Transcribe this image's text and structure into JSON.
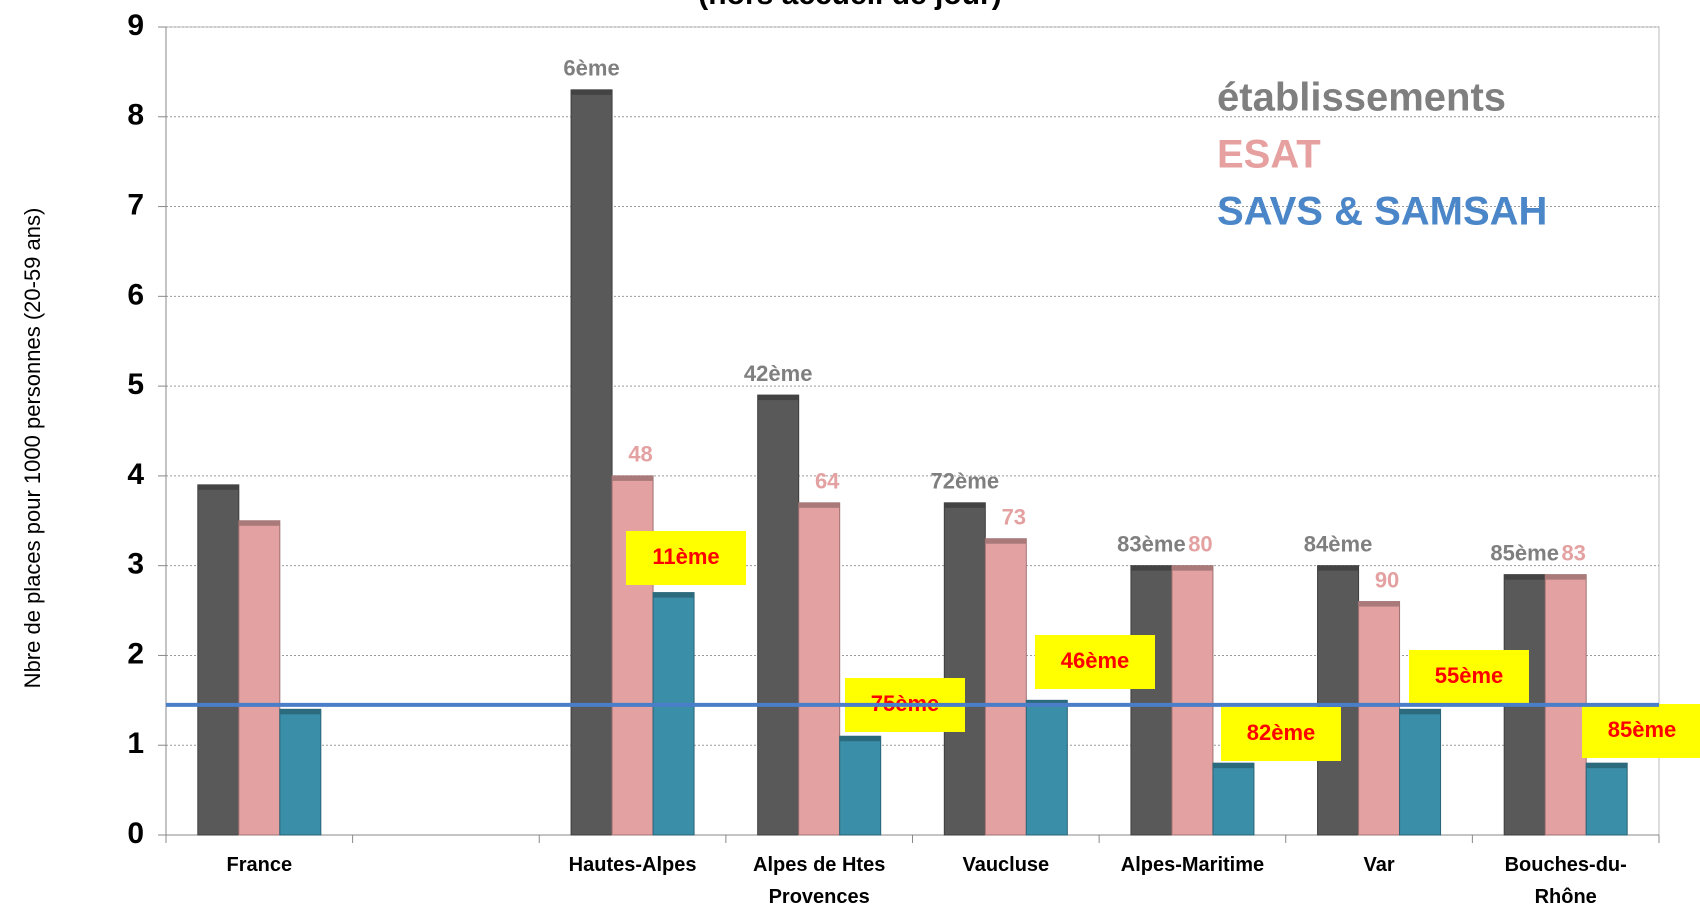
{
  "chart_data": {
    "type": "bar",
    "title": "(hors accueil de jour)",
    "y_label": "Nbre de places pour 1000 personnes (20-59 ans)",
    "categories": [
      "France",
      null,
      "Hautes-Alpes",
      "Alpes de Htes Provences",
      "Vaucluse",
      "Alpes-Maritime",
      "Var",
      "Bouches-du-Rhône"
    ],
    "series": [
      {
        "name": "établissements",
        "color": "#595959",
        "legend_color": "#7f7f7f",
        "values": [
          3.9,
          null,
          8.3,
          4.9,
          3.7,
          3.0,
          3.0,
          2.9
        ],
        "rank_labels": [
          null,
          null,
          "6ème",
          "42ème",
          "72ème",
          "83ème",
          "84ème",
          "85ème"
        ]
      },
      {
        "name": "ESAT",
        "color": "#e3a1a1",
        "legend_color": "#e6a0a0",
        "values": [
          3.5,
          null,
          4.0,
          3.7,
          3.3,
          3.0,
          2.6,
          2.9
        ],
        "rank_labels": [
          null,
          null,
          "48",
          "64",
          "73",
          "80",
          "90",
          "83"
        ]
      },
      {
        "name": "SAVS & SAMSAH",
        "color": "#3a8ea8",
        "legend_color": "#4a86c8",
        "values": [
          1.4,
          null,
          2.7,
          1.1,
          1.5,
          0.8,
          1.4,
          0.8
        ],
        "rank_labels": [
          null,
          null,
          "11ème",
          "75ème",
          "46ème",
          "82ème",
          "55ème",
          "85ème"
        ]
      }
    ],
    "reference_line": {
      "value": 1.45,
      "color": "#4a7ec8"
    },
    "ylim": [
      0,
      9
    ],
    "yticks": [
      0,
      1,
      2,
      3,
      4,
      5,
      6,
      7,
      8,
      9
    ],
    "grid": true
  }
}
